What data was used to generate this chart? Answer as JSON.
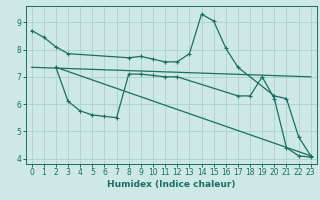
{
  "xlabel": "Humidex (Indice chaleur)",
  "background_color": "#cde8e5",
  "grid_color": "#b0d4d0",
  "line_color": "#1a6e63",
  "xlim": [
    -0.5,
    23.5
  ],
  "ylim": [
    3.8,
    9.6
  ],
  "yticks": [
    4,
    5,
    6,
    7,
    8,
    9
  ],
  "xticks": [
    0,
    1,
    2,
    3,
    4,
    5,
    6,
    7,
    8,
    9,
    10,
    11,
    12,
    13,
    14,
    15,
    16,
    17,
    18,
    19,
    20,
    21,
    22,
    23
  ],
  "line1_x": [
    0,
    1,
    2,
    3,
    8,
    9,
    10,
    11,
    12,
    13,
    14,
    15,
    16,
    17,
    20,
    21,
    22,
    23
  ],
  "line1_y": [
    8.7,
    8.45,
    8.1,
    7.85,
    7.7,
    7.75,
    7.65,
    7.55,
    7.55,
    7.85,
    9.3,
    9.05,
    8.05,
    7.35,
    6.3,
    6.2,
    4.8,
    4.1
  ],
  "line2_x": [
    0,
    23
  ],
  "line2_y": [
    7.35,
    7.0
  ],
  "line3_x": [
    2,
    3,
    4,
    5,
    6,
    7,
    8,
    9,
    10,
    11,
    12,
    17,
    18,
    19,
    20,
    21,
    22,
    23
  ],
  "line3_y": [
    7.35,
    6.1,
    5.75,
    5.6,
    5.55,
    5.5,
    7.1,
    7.1,
    7.05,
    7.0,
    7.0,
    6.3,
    6.3,
    7.0,
    6.2,
    4.4,
    4.1,
    4.05
  ],
  "line4_x": [
    2,
    23
  ],
  "line4_y": [
    7.35,
    4.1
  ]
}
